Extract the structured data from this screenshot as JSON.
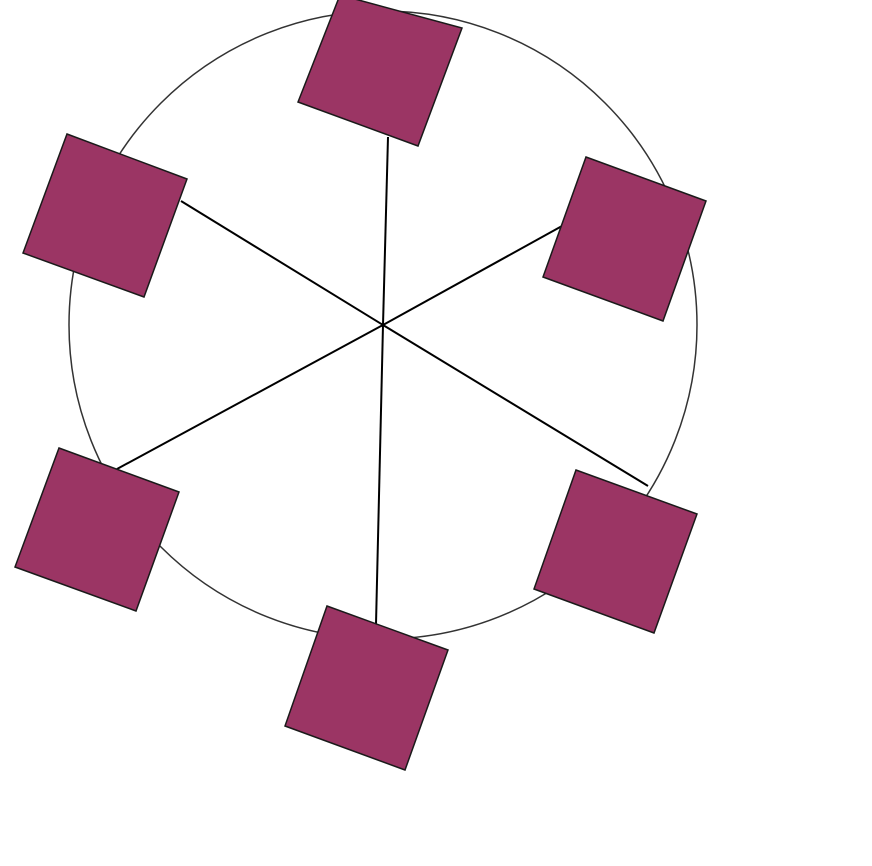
{
  "diagram": {
    "shape": "ring-of-squares",
    "node_count": 6,
    "colors": {
      "node_fill": "#9b3564",
      "node_stroke": "#1a1a1a",
      "spoke": "#000000",
      "ring": "#333333",
      "background": "#ffffff"
    },
    "nodes": [
      {
        "name": "node-top"
      },
      {
        "name": "node-upper-right"
      },
      {
        "name": "node-lower-right"
      },
      {
        "name": "node-bottom"
      },
      {
        "name": "node-lower-left"
      },
      {
        "name": "node-upper-left"
      }
    ]
  }
}
